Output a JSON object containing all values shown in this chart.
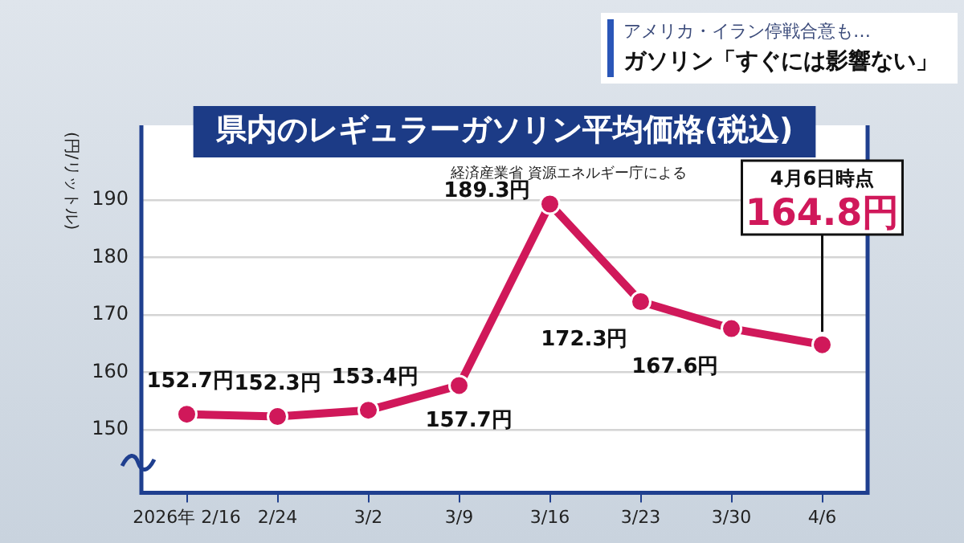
{
  "chart_data": {
    "type": "line",
    "title": "県内のレギュラーガソリン平均価格(税込)",
    "subtitle": "経済産業省 資源エネルギー庁による",
    "ylabel": "(円/リットル)",
    "categories": [
      "2026年 2/16",
      "2/24",
      "3/2",
      "3/9",
      "3/16",
      "3/23",
      "3/30",
      "4/6"
    ],
    "series": [
      {
        "color": "#d0185a",
        "values": [
          152.7,
          152.3,
          153.4,
          157.7,
          189.3,
          172.3,
          167.6,
          164.8
        ],
        "value_labels": [
          "152.7円",
          "152.3円",
          "153.4円",
          "157.7円",
          "189.3円",
          "172.3円",
          "167.6円",
          "164.8円"
        ]
      }
    ],
    "ylim": [
      139,
      203
    ],
    "yticks": [
      150,
      160,
      170,
      180,
      190
    ],
    "grid": "y",
    "legend": false,
    "marker": "circle",
    "line_style": "solid",
    "annotations": [
      "アメリカ・イラン停戦合意も…",
      "ガソリン「すぐには影響ない」",
      "4月6日時点"
    ]
  }
}
